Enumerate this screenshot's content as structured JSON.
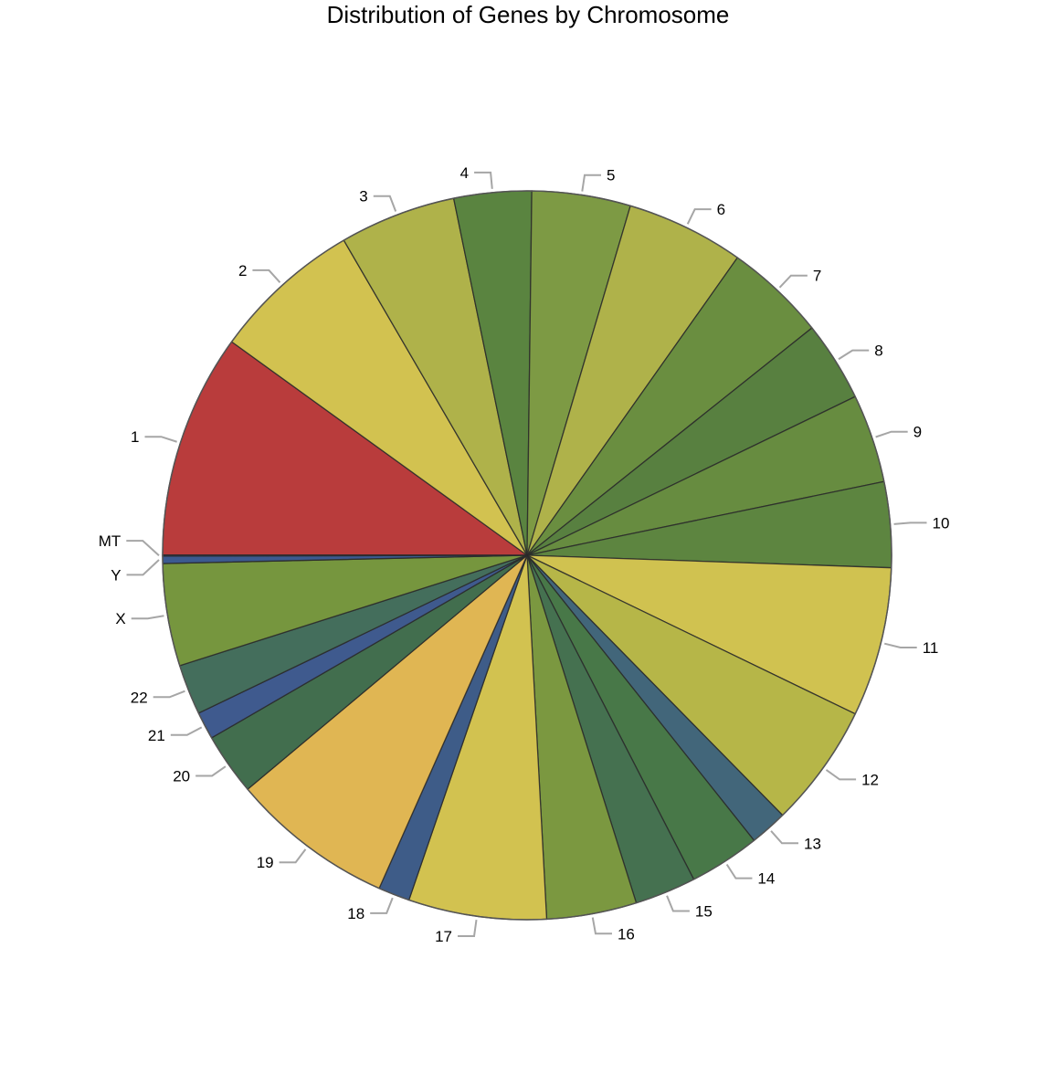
{
  "chart_data": {
    "type": "pie",
    "title": "Distribution of Genes by Chromosome",
    "categories": [
      "1",
      "2",
      "3",
      "4",
      "5",
      "6",
      "7",
      "8",
      "9",
      "10",
      "11",
      "12",
      "13",
      "14",
      "15",
      "16",
      "17",
      "18",
      "19",
      "20",
      "21",
      "22",
      "X",
      "Y",
      "MT"
    ],
    "values": [
      10.11,
      6.76,
      5.24,
      3.49,
      4.44,
      5.3,
      4.56,
      3.61,
      3.99,
      3.85,
      6.73,
      5.56,
      1.69,
      3.19,
      2.76,
      4.05,
      6.21,
      1.42,
      7.37,
      2.79,
      1.24,
      2.27,
      4.61,
      0.33,
      0.05
    ],
    "colors": [
      "#b93c3c",
      "#d2c250",
      "#afb24a",
      "#5a8440",
      "#7d9a44",
      "#afb24a",
      "#6a8e40",
      "#588040",
      "#678c40",
      "#5d8540",
      "#d0c250",
      "#b6b648",
      "#42667a",
      "#487848",
      "#457150",
      "#7b9840",
      "#d2c250",
      "#3e5c88",
      "#e0b653",
      "#426e4e",
      "#3f5a8e",
      "#446e5c",
      "#76963e",
      "#3c5a90",
      "#3a4c8c"
    ],
    "legend": "none"
  }
}
